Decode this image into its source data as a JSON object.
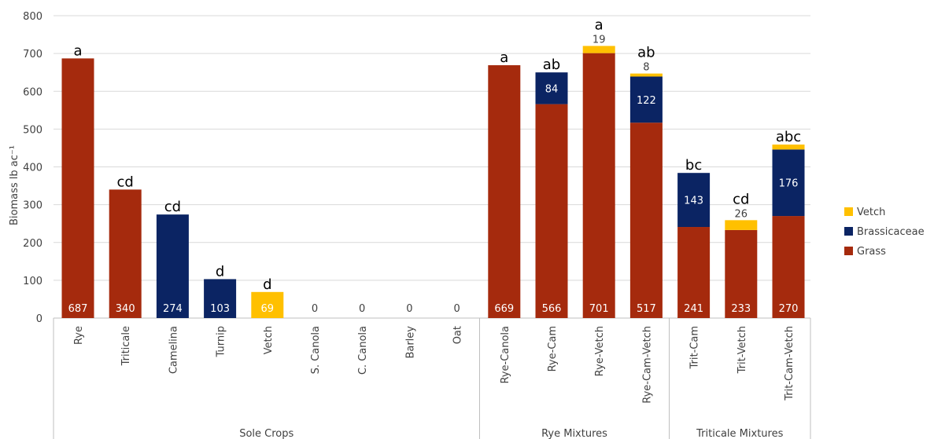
{
  "chart_data": {
    "type": "bar",
    "stacked": true,
    "title": "",
    "ylabel": "Biomass lb ac⁻¹",
    "ylim": [
      0,
      800
    ],
    "yticks": [
      0,
      100,
      200,
      300,
      400,
      500,
      600,
      700,
      800
    ],
    "grid": true,
    "legend_position": "right",
    "categories": [
      "Rye",
      "Triticale",
      "Camelina",
      "Turnip",
      "Vetch",
      "S. Canola",
      "C. Canola",
      "Barley",
      "Oat",
      "Rye-Canola",
      "Rye-Cam",
      "Rye-Vetch",
      "Rye-Cam-Vetch",
      "Trit-Cam",
      "Trit-Vetch",
      "Trit-Cam-Vetch"
    ],
    "groups": [
      {
        "label": "Sole Crops",
        "count": 9
      },
      {
        "label": "Rye Mixtures",
        "count": 4
      },
      {
        "label": "Triticale Mixtures",
        "count": 3
      }
    ],
    "series": [
      {
        "name": "Grass",
        "color": "#A52A0D",
        "values": [
          687,
          340,
          0,
          0,
          0,
          0,
          0,
          0,
          0,
          669,
          566,
          701,
          517,
          241,
          233,
          270
        ]
      },
      {
        "name": "Brassicaceae",
        "color": "#0B2463",
        "values": [
          0,
          0,
          274,
          103,
          0,
          0,
          0,
          0,
          0,
          0,
          84,
          0,
          122,
          143,
          0,
          176
        ]
      },
      {
        "name": "Vetch",
        "color": "#FFC000",
        "values": [
          0,
          0,
          0,
          0,
          69,
          0,
          0,
          0,
          0,
          0,
          0,
          19,
          8,
          0,
          26,
          13
        ]
      }
    ],
    "base_labels": [
      "687",
      "340",
      "274",
      "103",
      "69",
      "0",
      "0",
      "0",
      "0",
      "669",
      "566",
      "701",
      "517",
      "241",
      "233",
      "270"
    ],
    "stack_labels": [
      {
        "category": "Rye-Cam",
        "series": "Brassicaceae",
        "text": "84"
      },
      {
        "category": "Rye-Vetch",
        "series": "Vetch",
        "text": "19"
      },
      {
        "category": "Rye-Cam-Vetch",
        "series": "Brassicaceae",
        "text": "122"
      },
      {
        "category": "Rye-Cam-Vetch",
        "series": "Vetch",
        "text": "8"
      },
      {
        "category": "Trit-Cam",
        "series": "Brassicaceae",
        "text": "143"
      },
      {
        "category": "Trit-Vetch",
        "series": "Vetch",
        "text": "26"
      },
      {
        "category": "Trit-Cam-Vetch",
        "series": "Brassicaceae",
        "text": "176"
      }
    ],
    "significance_letters": [
      "a",
      "cd",
      "cd",
      "d",
      "d",
      "",
      "",
      "",
      "",
      "a",
      "ab",
      "a",
      "ab",
      "bc",
      "cd",
      "abc"
    ],
    "legend_order": [
      "Vetch",
      "Brassicaceae",
      "Grass"
    ]
  }
}
